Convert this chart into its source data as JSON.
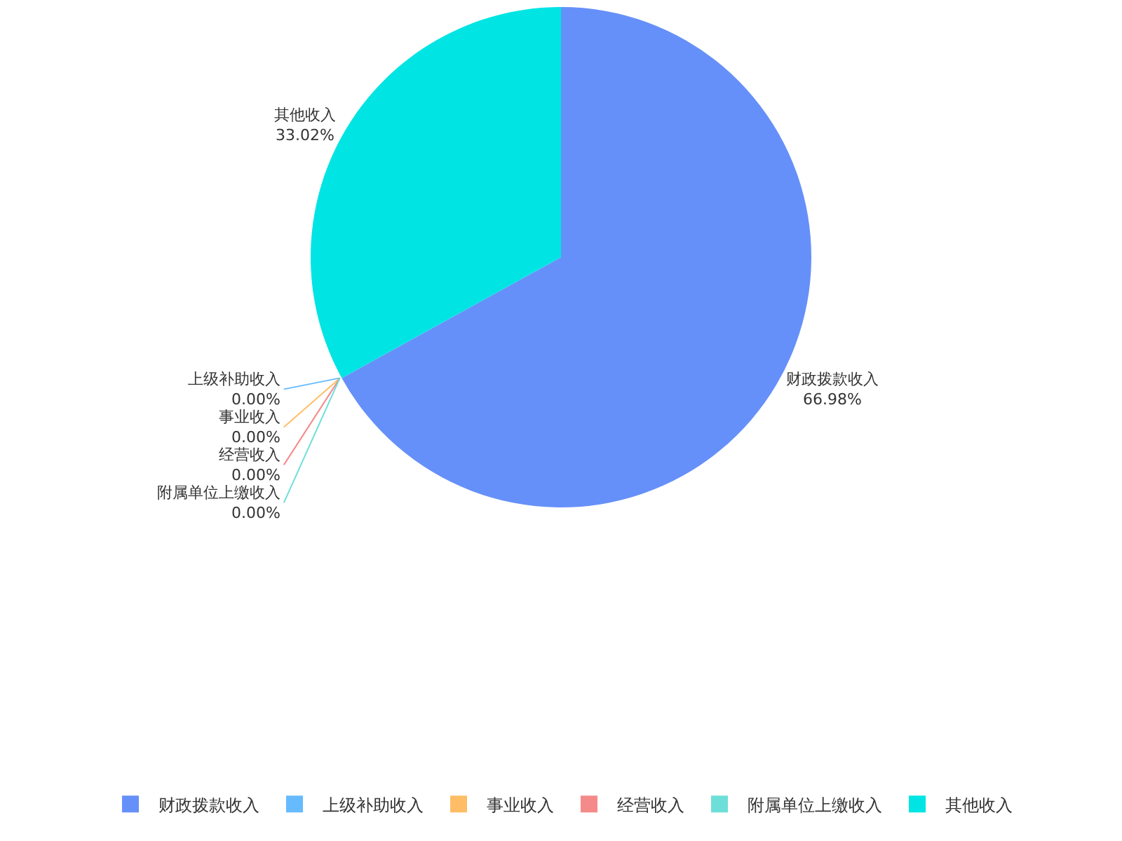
{
  "chart_data": {
    "type": "pie",
    "categories": [
      "财政拨款收入",
      "上级补助收入",
      "事业收入",
      "经营收入",
      "附属单位上缴收入",
      "其他收入"
    ],
    "values": [
      66.98,
      0,
      0,
      0,
      0,
      33.02
    ],
    "value_labels": [
      "66.98%",
      "0.00%",
      "0.00%",
      "0.00%",
      "0.00%",
      "33.02%"
    ],
    "colors": [
      "#6690f9",
      "#66bbff",
      "#ffbe66",
      "#f58a8a",
      "#6ddfd8",
      "#00e4e4"
    ],
    "legend": "bottom"
  }
}
